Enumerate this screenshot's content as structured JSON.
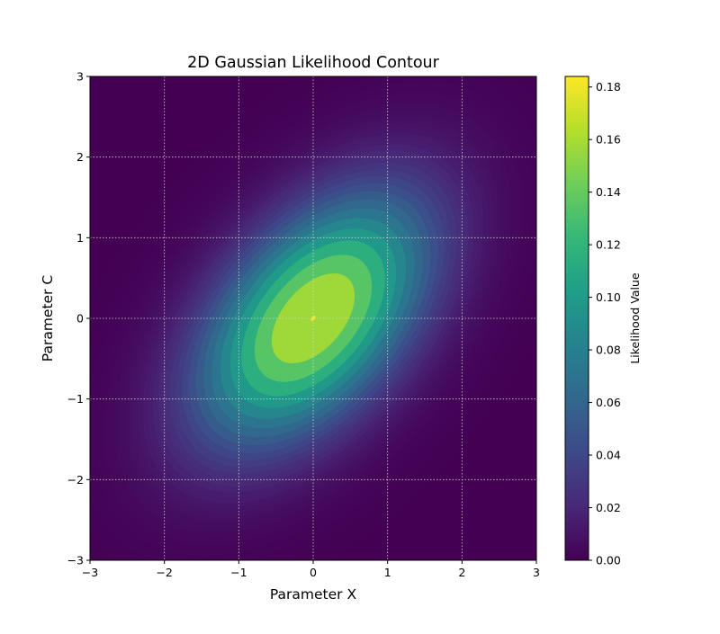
{
  "chart_data": {
    "type": "heatmap",
    "subtype": "filled-contour",
    "title": "2D Gaussian Likelihood Contour",
    "xlabel": "Parameter X",
    "ylabel": "Parameter C",
    "xlim": [
      -3,
      3
    ],
    "ylim": [
      -3,
      3
    ],
    "xticks": [
      -3,
      -2,
      -1,
      0,
      1,
      2,
      3
    ],
    "yticks": [
      -3,
      -2,
      -1,
      0,
      1,
      2,
      3
    ],
    "xtick_labels": [
      "−3",
      "−2",
      "−1",
      "0",
      "1",
      "2",
      "3"
    ],
    "ytick_labels": [
      "−3",
      "−2",
      "−1",
      "0",
      "1",
      "2",
      "3"
    ],
    "grid": true,
    "colormap": "viridis",
    "distribution": {
      "mean": [
        0,
        0
      ],
      "covariance": [
        [
          1.0,
          0.5
        ],
        [
          0.5,
          1.0
        ]
      ],
      "peak_value": 0.184
    },
    "colorbar": {
      "label": "Likelihood Value",
      "range": [
        0.0,
        0.184
      ],
      "ticks": [
        0.0,
        0.02,
        0.04,
        0.06,
        0.08,
        0.1,
        0.12,
        0.14,
        0.16,
        0.18
      ],
      "tick_labels": [
        "0.00",
        "0.02",
        "0.04",
        "0.06",
        "0.08",
        "0.10",
        "0.12",
        "0.14",
        "0.16",
        "0.18"
      ]
    },
    "contour_levels": 50
  },
  "colors": {
    "viridis_stops": [
      "#440154",
      "#482878",
      "#3e4989",
      "#31688e",
      "#26828e",
      "#1f9e89",
      "#35b779",
      "#6ece58",
      "#b5de2b",
      "#fde725"
    ],
    "grid": "#d0d0d0"
  }
}
